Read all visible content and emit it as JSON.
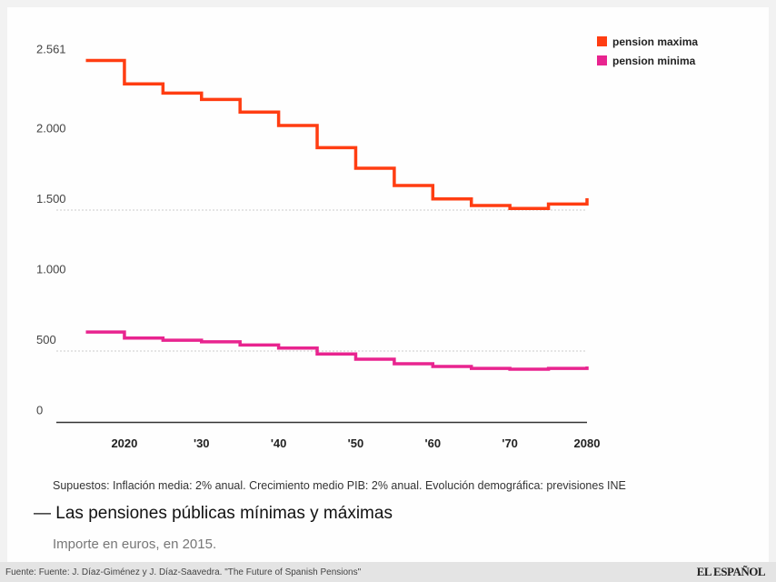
{
  "chart_data": {
    "type": "line",
    "step": true,
    "title": "Las pensiones públicas mínimas y máximas",
    "subtitle": "Importe en euros, en 2015.",
    "note": "Supuestos: Inflación media: 2% anual. Crecimiento medio PIB: 2% anual. Evolución demográfica: previsiones INE",
    "x": [
      2015,
      2020,
      2025,
      2030,
      2035,
      2040,
      2045,
      2050,
      2055,
      2060,
      2065,
      2070,
      2075,
      2080
    ],
    "series": [
      {
        "name": "pension maxima",
        "color": "#ff3d12",
        "values": [
          2561,
          2395,
          2330,
          2285,
          2195,
          2100,
          1943,
          1797,
          1674,
          1579,
          1532,
          1511,
          1543,
          1584
        ]
      },
      {
        "name": "pension minima",
        "color": "#e8248f",
        "values": [
          635,
          592,
          577,
          565,
          543,
          521,
          479,
          442,
          410,
          390,
          377,
          371,
          377,
          390
        ]
      }
    ],
    "yticks": [
      {
        "v": 0,
        "label": "0"
      },
      {
        "v": 500,
        "label": "500"
      },
      {
        "v": 1000,
        "label": "1.000"
      },
      {
        "v": 1500,
        "label": "1.500"
      },
      {
        "v": 2000,
        "label": "2.000"
      },
      {
        "v": 2561,
        "label": "2.561"
      }
    ],
    "xticks": [
      {
        "v": 2020,
        "label": "2020"
      },
      {
        "v": 2030,
        "label": "'30"
      },
      {
        "v": 2040,
        "label": "'40"
      },
      {
        "v": 2050,
        "label": "'50"
      },
      {
        "v": 2060,
        "label": "'60"
      },
      {
        "v": 2070,
        "label": "'70"
      },
      {
        "v": 2080,
        "label": "2080"
      }
    ],
    "gridlines_at": [
      500,
      1500
    ],
    "ylim": [
      0,
      2561
    ],
    "xlim": [
      2015,
      2080
    ],
    "legend_position": "top-right"
  },
  "footer": {
    "source": "Fuente: Fuente: J. Díaz-Giménez y J. Díaz-Saavedra. \"The Future of Spanish Pensions\"",
    "logo": "EL ESPAÑOL"
  }
}
